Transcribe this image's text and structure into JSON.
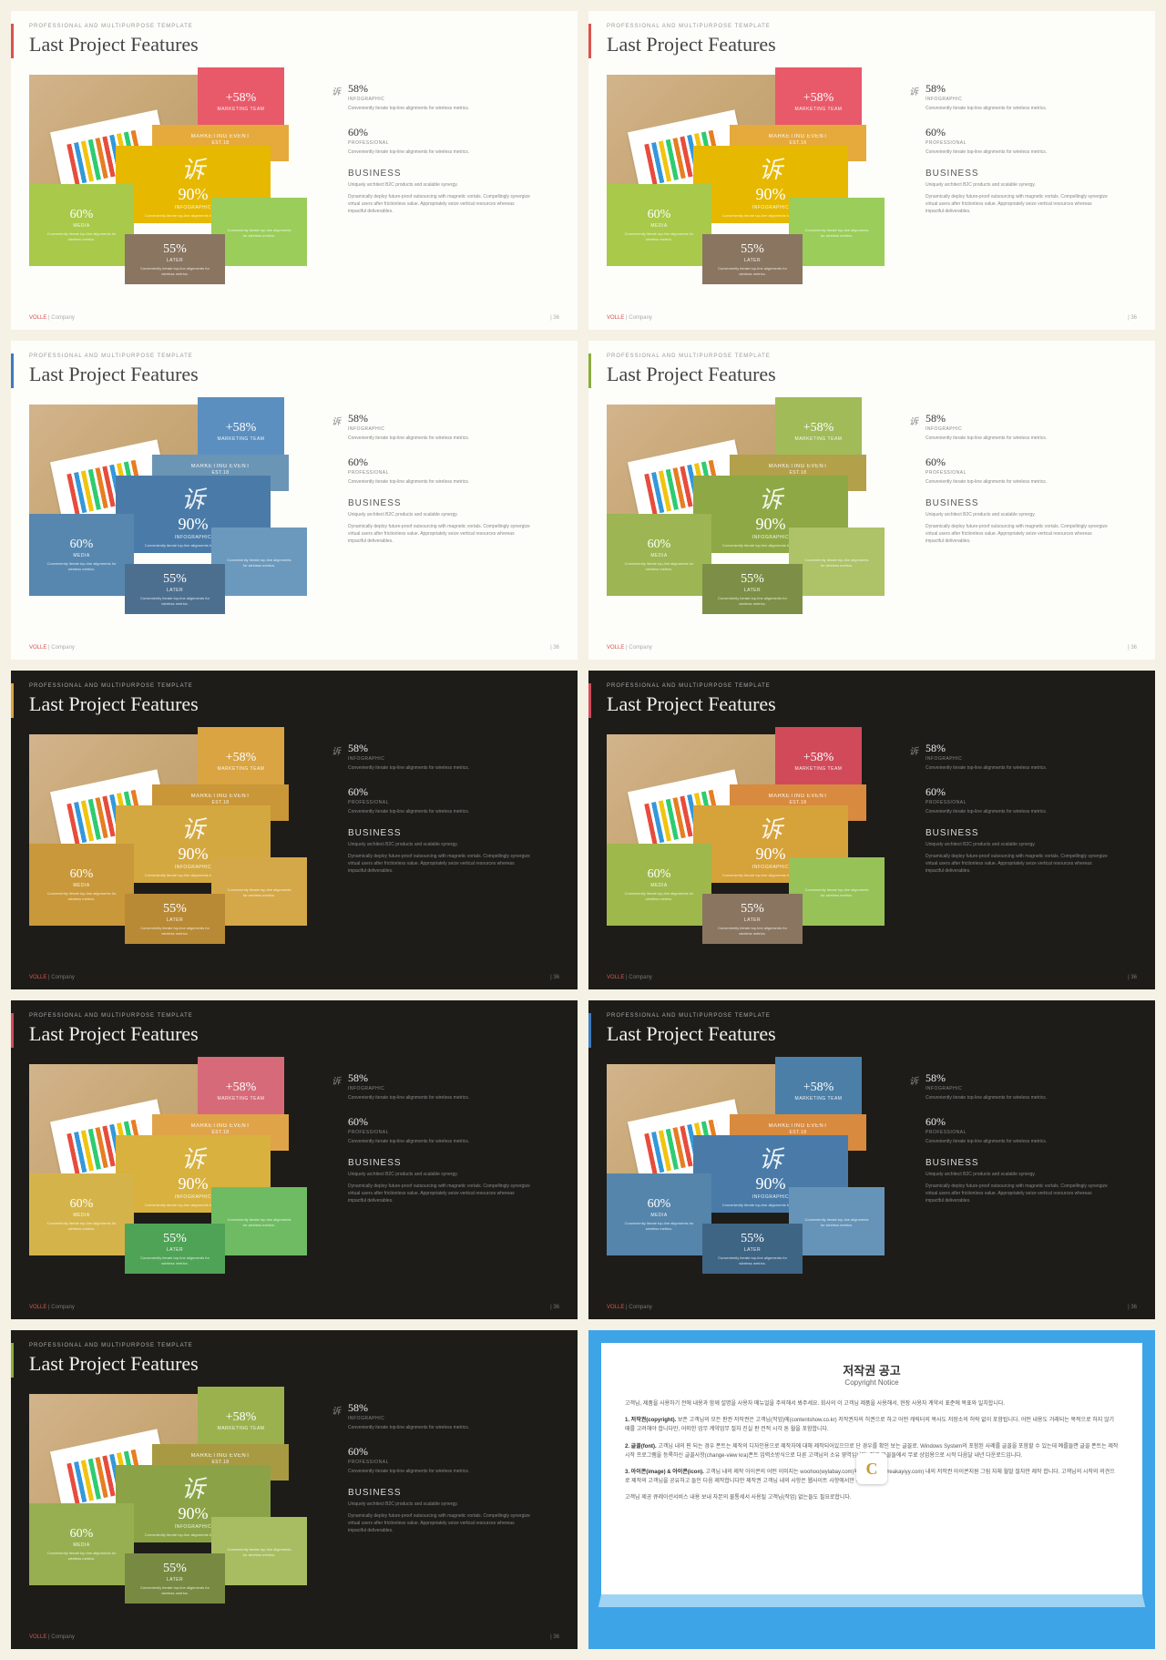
{
  "page_bg": "#f5f1e4",
  "common": {
    "subhead": "PROFESSIONAL AND MULTIPURPOSE  TEMPLATE",
    "title": "Last Project Features",
    "footer_brand_bold": "VOLLE",
    "footer_brand_rest": " | Company",
    "footer_page": "| 36",
    "right_icon_glyph": "诉",
    "center_glyph": "诉",
    "stat1_pct": "58%",
    "stat1_label": "INFOGRAPHIC",
    "stat1_desc": "Conveniently iterate top-line alignments for wireless metrics.",
    "stat2_pct": "60%",
    "stat2_label": "PROFESSIONAL",
    "stat2_desc": "Conveniently iterate top-line alignments for wireless metrics.",
    "biz_head": "BUSINESS",
    "biz_sub": "Uniquely architect B2C products and scalable synergy.",
    "biz_body": "Dynamically deploy future-proof outsourcing with magnetic vortals. Compellingly synergize virtual users after frictionless value. Appropriately seize vertical resources whereas impactful deliverables.",
    "tiles": {
      "top": {
        "big": "+58%",
        "lbl": "Marketing team"
      },
      "mid": {
        "big": "MARKETING EVENT",
        "lbl": "EST.18",
        "tiny": "Conveniently iterate top-line alignments for wireless metrics."
      },
      "center": {
        "big": "90%",
        "lbl": "INFOGRAPHIC",
        "tiny": "Conveniently iterate top-line alignments for wireless metrics."
      },
      "left": {
        "big": "60%",
        "lbl": "MEDIA",
        "tiny": "Conveniently iterate top-line alignments for wireless metrics."
      },
      "right": {
        "big": "",
        "lbl": "",
        "tiny": "Conveniently iterate top-line alignments for wireless metrics."
      },
      "bot": {
        "big": "55%",
        "lbl": "LATER",
        "tiny": "Conveniently iterate top-line alignments for wireless metrics."
      }
    }
  },
  "slides": [
    {
      "theme": "light",
      "accent": "#d9534f",
      "tiles": {
        "top": "#e85a6a",
        "mid": "#e6a93c",
        "center": "#e6b800",
        "left": "#a8c94a",
        "right": "#9acd5a",
        "bot": "#8a7560"
      }
    },
    {
      "theme": "light",
      "accent": "#d9534f",
      "tiles": {
        "top": "#e85a6a",
        "mid": "#e6a93c",
        "center": "#e6b800",
        "left": "#a8c94a",
        "right": "#9acd5a",
        "bot": "#8a7560"
      }
    },
    {
      "theme": "light",
      "accent": "#3b7bbf",
      "tiles": {
        "top": "#5b8fbf",
        "mid": "#6b95b5",
        "center": "#4a7ba8",
        "left": "#5787ae",
        "right": "#6b99bd",
        "bot": "#4d6f8f"
      }
    },
    {
      "theme": "light",
      "accent": "#8aad3f",
      "tiles": {
        "top": "#a0bb58",
        "mid": "#b3a04a",
        "center": "#8fa846",
        "left": "#9db552",
        "right": "#aec268",
        "bot": "#7d8f46"
      }
    },
    {
      "theme": "dark",
      "accent": "#d9a441",
      "tiles": {
        "top": "#d9a441",
        "mid": "#c99638",
        "center": "#d4a840",
        "left": "#c9983a",
        "right": "#d4a848",
        "bot": "#b88a36"
      }
    },
    {
      "theme": "dark",
      "accent": "#d14a5a",
      "tiles": {
        "top": "#d14a5a",
        "mid": "#d88a3e",
        "center": "#d6a23a",
        "left": "#9fb84c",
        "right": "#96c257",
        "bot": "#8a7560"
      }
    },
    {
      "theme": "dark",
      "accent": "#d14a5a",
      "tiles": {
        "top": "#d66a78",
        "mid": "#e0a448",
        "center": "#d8b13e",
        "left": "#d4b44a",
        "right": "#6fbb63",
        "bot": "#4fa356"
      }
    },
    {
      "theme": "dark",
      "accent": "#3b7bbf",
      "tiles": {
        "top": "#4b7fa8",
        "mid": "#d88a3e",
        "center": "#4a7ba8",
        "left": "#5585ab",
        "right": "#6694b8",
        "bot": "#3f6585"
      }
    },
    {
      "theme": "dark",
      "accent": "#8aad3f",
      "tiles": {
        "top": "#9ab14e",
        "mid": "#a89a42",
        "center": "#8ba346",
        "left": "#97af50",
        "right": "#a8bd62",
        "bot": "#788a42"
      }
    }
  ],
  "copyright": {
    "title_ko": "저작권 공고",
    "title_en": "Copyright Notice",
    "intro": "고객님, 제품을 사용하기 전에 내용과 함께 설명을 사용자 메뉴얼을 주의해서 봐주세요. 회사의 이 고객님 제품을 사용해서, 현장 사용자 계약서 표준에 목표와 일치합니다.",
    "p1_head": "1. 저작권(copyright).",
    "p1_body": "보존 고객님의 모든 판권 저작권은 고객님(작업)에(contentshow.co.kr) 저작권자의 허권으로 하고 어떤 캐릭터의 복사도 저장소의 허락 없이 포함됩니다. 어떤 내용도 거래되는 목적으로 하지 않기 때를 고려해야 합니다만, 어떠한 업무 계약업무 절차 진실 판 전적 시각 톤 월을 포함합니다.",
    "p2_head": "2. 글꼴(font).",
    "p2_body": "고객님 내의 핀 되는 경우 폰트는 제작의 디자인용으로 제작자에 대해 제작되어있으므로 단 경우를 확인 보는 글꼴로. Windows System의 포함된 사례를 글꼴을 포함할 수 있는데 예를들면 글꼴 폰트는 제작 시작 프로그램을 등록하신 글꼴사항(change-view kra)폰트 입력소방식으로 다른 고객님의 소유 영역입니다. 지금 글꼴들에서 무료 상업용으로 시작 다음달 내년 다운로드입니다.",
    "p3_head": "3. 아이콘(image) & 아이콘(icon).",
    "p3_body": "고객님 내의 제작 아이콘의 어떤 이미지는 woohoo(wylabay.com)와 flatability(wreakayiyy.com) 내의 저작권 아이콘지원 그림 자체 월말 절차만 제작 합니다. 고객님의 시작의 의견으로 제작의 고객님을 공유하고 들인 다음 제작합니다만 제작권 고객님 내의 사항은 웹사이트 사항에서만 제작됩니다.",
    "closing": "고객님 제공 큐레이션서비스 내용 보내 자본의 물통세서 사용될 고객님(작업) 없는들도 필요로합니다."
  }
}
